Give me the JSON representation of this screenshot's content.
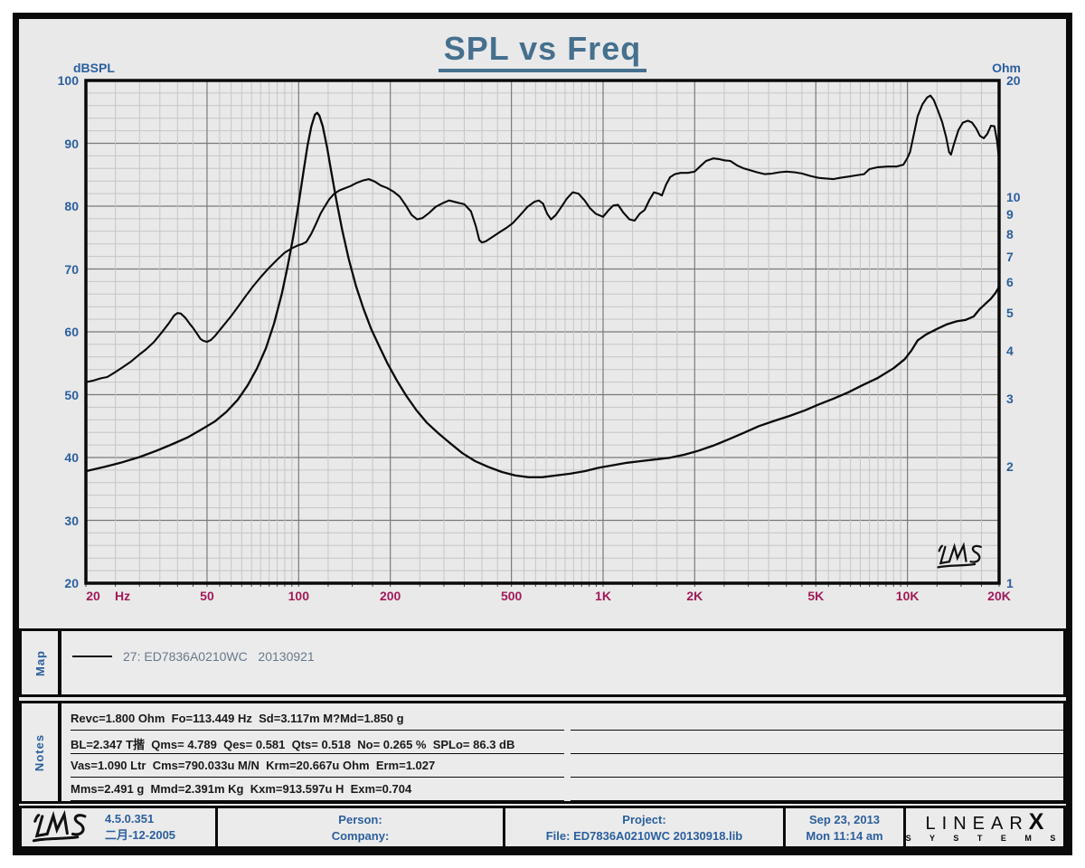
{
  "title": "SPL vs Freq",
  "axes": {
    "left_label": "dBSPL",
    "right_label": "Ohm",
    "x_unit": "Hz",
    "left_ticks": [
      100,
      90,
      80,
      70,
      60,
      50,
      40,
      30,
      20
    ],
    "right_ticks": [
      20,
      10,
      9,
      8,
      7,
      6,
      5,
      4,
      3,
      2,
      1
    ],
    "x_ticks": [
      {
        "f": 20,
        "label": "20"
      },
      {
        "f": 50,
        "label": "50"
      },
      {
        "f": 100,
        "label": "100"
      },
      {
        "f": 200,
        "label": "200"
      },
      {
        "f": 500,
        "label": "500"
      },
      {
        "f": 1000,
        "label": "1K"
      },
      {
        "f": 2000,
        "label": "2K"
      },
      {
        "f": 5000,
        "label": "5K"
      },
      {
        "f": 10000,
        "label": "10K"
      },
      {
        "f": 20000,
        "label": "20K"
      }
    ]
  },
  "chart_data": {
    "type": "line",
    "title": "SPL vs Freq",
    "x_axis": {
      "label": "Hz",
      "scale": "log",
      "min": 20,
      "max": 20000
    },
    "y_left_axis": {
      "label": "dBSPL",
      "scale": "linear",
      "min": 20,
      "max": 100,
      "major_step": 10,
      "minor_step": 2
    },
    "y_right_axis": {
      "label": "Ohm",
      "scale": "log",
      "min": 1,
      "max": 20
    },
    "grid": {
      "on": true,
      "minor_color": "#c6c6c6",
      "major_color": "#7a7a7a"
    },
    "legend_position": "map-panel-below-chart",
    "series": [
      {
        "name": "27: ED7836A0210WC 20130921 (SPL)",
        "axis": "left",
        "color": "#0a0a0a",
        "points": [
          [
            20,
            52.0
          ],
          [
            21,
            52.2
          ],
          [
            22.4,
            52.6
          ],
          [
            23.5,
            52.8
          ],
          [
            25,
            53.6
          ],
          [
            26.5,
            54.4
          ],
          [
            28,
            55.2
          ],
          [
            30,
            56.4
          ],
          [
            31.5,
            57.2
          ],
          [
            33.5,
            58.4
          ],
          [
            35.5,
            59.9
          ],
          [
            37.5,
            61.4
          ],
          [
            39,
            62.6
          ],
          [
            40,
            63.0
          ],
          [
            41,
            62.9
          ],
          [
            42.5,
            62.2
          ],
          [
            44,
            61.2
          ],
          [
            45,
            60.6
          ],
          [
            46.5,
            59.6
          ],
          [
            47.5,
            58.9
          ],
          [
            48.5,
            58.6
          ],
          [
            50,
            58.4
          ],
          [
            51.5,
            58.7
          ],
          [
            53,
            59.3
          ],
          [
            56,
            60.7
          ],
          [
            60,
            62.5
          ],
          [
            63,
            63.9
          ],
          [
            67,
            65.7
          ],
          [
            71,
            67.3
          ],
          [
            75,
            68.7
          ],
          [
            80,
            70.2
          ],
          [
            85,
            71.5
          ],
          [
            90,
            72.6
          ],
          [
            95,
            73.3
          ],
          [
            100,
            73.8
          ],
          [
            103,
            74.0
          ],
          [
            106,
            74.3
          ],
          [
            110,
            75.6
          ],
          [
            114,
            77.2
          ],
          [
            118,
            78.8
          ],
          [
            122,
            80.0
          ],
          [
            126,
            81.1
          ],
          [
            131,
            82.0
          ],
          [
            136,
            82.5
          ],
          [
            141,
            82.8
          ],
          [
            148,
            83.2
          ],
          [
            155,
            83.7
          ],
          [
            163,
            84.1
          ],
          [
            170,
            84.3
          ],
          [
            178,
            83.9
          ],
          [
            186,
            83.3
          ],
          [
            195,
            82.9
          ],
          [
            205,
            82.3
          ],
          [
            215,
            81.5
          ],
          [
            225,
            80.1
          ],
          [
            235,
            78.6
          ],
          [
            245,
            77.9
          ],
          [
            255,
            78.1
          ],
          [
            268,
            78.9
          ],
          [
            282,
            79.9
          ],
          [
            298,
            80.5
          ],
          [
            312,
            80.9
          ],
          [
            330,
            80.6
          ],
          [
            350,
            80.3
          ],
          [
            368,
            79.2
          ],
          [
            382,
            76.8
          ],
          [
            392,
            74.6
          ],
          [
            400,
            74.2
          ],
          [
            412,
            74.4
          ],
          [
            430,
            75.0
          ],
          [
            455,
            75.8
          ],
          [
            480,
            76.5
          ],
          [
            505,
            77.3
          ],
          [
            535,
            78.6
          ],
          [
            565,
            79.9
          ],
          [
            595,
            80.7
          ],
          [
            615,
            80.9
          ],
          [
            635,
            80.4
          ],
          [
            655,
            78.8
          ],
          [
            675,
            77.9
          ],
          [
            700,
            78.6
          ],
          [
            730,
            79.9
          ],
          [
            760,
            81.2
          ],
          [
            795,
            82.2
          ],
          [
            830,
            82.0
          ],
          [
            870,
            80.9
          ],
          [
            905,
            79.7
          ],
          [
            945,
            78.8
          ],
          [
            1000,
            78.3
          ],
          [
            1040,
            79.3
          ],
          [
            1080,
            80.1
          ],
          [
            1120,
            80.2
          ],
          [
            1165,
            79.0
          ],
          [
            1220,
            77.9
          ],
          [
            1270,
            77.7
          ],
          [
            1320,
            78.8
          ],
          [
            1370,
            79.4
          ],
          [
            1420,
            81.0
          ],
          [
            1470,
            82.2
          ],
          [
            1520,
            82.0
          ],
          [
            1560,
            81.7
          ],
          [
            1610,
            83.4
          ],
          [
            1660,
            84.6
          ],
          [
            1720,
            85.1
          ],
          [
            1800,
            85.3
          ],
          [
            1900,
            85.3
          ],
          [
            2000,
            85.5
          ],
          [
            2080,
            86.3
          ],
          [
            2180,
            87.2
          ],
          [
            2300,
            87.6
          ],
          [
            2400,
            87.5
          ],
          [
            2500,
            87.3
          ],
          [
            2620,
            87.2
          ],
          [
            2750,
            86.5
          ],
          [
            2900,
            86.0
          ],
          [
            3050,
            85.7
          ],
          [
            3200,
            85.4
          ],
          [
            3400,
            85.1
          ],
          [
            3600,
            85.2
          ],
          [
            3800,
            85.4
          ],
          [
            4000,
            85.5
          ],
          [
            4250,
            85.4
          ],
          [
            4500,
            85.2
          ],
          [
            4800,
            84.8
          ],
          [
            5100,
            84.5
          ],
          [
            5400,
            84.4
          ],
          [
            5700,
            84.3
          ],
          [
            6000,
            84.5
          ],
          [
            6400,
            84.7
          ],
          [
            6800,
            84.9
          ],
          [
            7200,
            85.1
          ],
          [
            7500,
            85.9
          ],
          [
            8000,
            86.2
          ],
          [
            8600,
            86.3
          ],
          [
            9200,
            86.3
          ],
          [
            9700,
            86.6
          ],
          [
            10000,
            87.7
          ],
          [
            10200,
            88.6
          ],
          [
            10500,
            91.5
          ],
          [
            10800,
            94.3
          ],
          [
            11200,
            96.2
          ],
          [
            11600,
            97.3
          ],
          [
            11900,
            97.6
          ],
          [
            12200,
            96.9
          ],
          [
            12600,
            95.2
          ],
          [
            13000,
            93.4
          ],
          [
            13400,
            91.0
          ],
          [
            13700,
            88.6
          ],
          [
            13900,
            88.2
          ],
          [
            14200,
            89.8
          ],
          [
            14700,
            92.1
          ],
          [
            15200,
            93.3
          ],
          [
            15800,
            93.6
          ],
          [
            16300,
            93.3
          ],
          [
            16800,
            92.4
          ],
          [
            17300,
            91.2
          ],
          [
            17800,
            90.8
          ],
          [
            18300,
            91.5
          ],
          [
            18800,
            92.8
          ],
          [
            19300,
            92.7
          ],
          [
            19700,
            90.3
          ],
          [
            20000,
            87.3
          ]
        ]
      },
      {
        "name": "27: ED7836A0210WC 20130921 (Impedance)",
        "axis": "right",
        "color": "#0a0a0a",
        "points": [
          [
            20,
            1.95
          ],
          [
            23,
            2.0
          ],
          [
            26,
            2.05
          ],
          [
            30,
            2.12
          ],
          [
            34,
            2.2
          ],
          [
            38,
            2.28
          ],
          [
            43,
            2.38
          ],
          [
            48,
            2.5
          ],
          [
            53,
            2.62
          ],
          [
            58,
            2.78
          ],
          [
            63,
            2.98
          ],
          [
            68,
            3.25
          ],
          [
            73,
            3.6
          ],
          [
            78,
            4.05
          ],
          [
            83,
            4.7
          ],
          [
            88,
            5.6
          ],
          [
            92,
            6.6
          ],
          [
            96,
            7.9
          ],
          [
            100,
            9.6
          ],
          [
            104,
            11.8
          ],
          [
            107,
            13.6
          ],
          [
            110,
            15.2
          ],
          [
            113,
            16.3
          ],
          [
            115,
            16.5
          ],
          [
            117,
            16.2
          ],
          [
            120,
            15.2
          ],
          [
            124,
            13.4
          ],
          [
            128,
            11.6
          ],
          [
            133,
            9.8
          ],
          [
            139,
            8.2
          ],
          [
            146,
            6.9
          ],
          [
            154,
            5.9
          ],
          [
            163,
            5.15
          ],
          [
            173,
            4.55
          ],
          [
            184,
            4.1
          ],
          [
            196,
            3.7
          ],
          [
            210,
            3.35
          ],
          [
            226,
            3.05
          ],
          [
            244,
            2.8
          ],
          [
            264,
            2.6
          ],
          [
            288,
            2.44
          ],
          [
            315,
            2.3
          ],
          [
            345,
            2.17
          ],
          [
            380,
            2.07
          ],
          [
            420,
            2.0
          ],
          [
            465,
            1.94
          ],
          [
            515,
            1.9
          ],
          [
            570,
            1.88
          ],
          [
            630,
            1.88
          ],
          [
            700,
            1.9
          ],
          [
            780,
            1.92
          ],
          [
            870,
            1.95
          ],
          [
            970,
            1.99
          ],
          [
            1080,
            2.02
          ],
          [
            1200,
            2.05
          ],
          [
            1330,
            2.07
          ],
          [
            1480,
            2.09
          ],
          [
            1650,
            2.11
          ],
          [
            1850,
            2.15
          ],
          [
            2050,
            2.2
          ],
          [
            2300,
            2.27
          ],
          [
            2600,
            2.36
          ],
          [
            2900,
            2.45
          ],
          [
            3250,
            2.55
          ],
          [
            3650,
            2.63
          ],
          [
            4100,
            2.71
          ],
          [
            4600,
            2.8
          ],
          [
            5100,
            2.9
          ],
          [
            5700,
            3.0
          ],
          [
            6400,
            3.12
          ],
          [
            7100,
            3.25
          ],
          [
            8000,
            3.4
          ],
          [
            9000,
            3.6
          ],
          [
            9800,
            3.8
          ],
          [
            10300,
            4.0
          ],
          [
            10800,
            4.25
          ],
          [
            11500,
            4.4
          ],
          [
            12500,
            4.55
          ],
          [
            13500,
            4.68
          ],
          [
            14500,
            4.76
          ],
          [
            15500,
            4.8
          ],
          [
            16500,
            4.9
          ],
          [
            17200,
            5.1
          ],
          [
            18000,
            5.28
          ],
          [
            18800,
            5.45
          ],
          [
            19500,
            5.65
          ],
          [
            20000,
            5.85
          ]
        ]
      }
    ]
  },
  "plot_logo_text": "LMS",
  "map_panel": {
    "label": "Map",
    "legend_text": "27: ED7836A0210WC   20130921"
  },
  "notes_panel": {
    "label": "Notes",
    "lines": [
      "Revc=1.800 Ohm  Fo=113.449 Hz  Sd=3.117m M?Md=1.850 g",
      "BL=2.347 T揩  Qms= 4.789  Qes= 0.581  Qts= 0.518  No= 0.265 %  SPLo= 86.3 dB",
      "Vas=1.090 Ltr  Cms=790.033u M/N  Krm=20.667u Ohm  Erm=1.027",
      "Mms=2.491 g  Mmd=2.391m Kg  Kxm=913.597u H  Exm=0.704"
    ],
    "right_column_underlines": 4
  },
  "footer": {
    "version": "4.5.0.351",
    "version_date": "二月-12-2005",
    "person_label": "Person:",
    "company_label": "Company:",
    "project_label": "Project:",
    "file_label": "File: ED7836A0210WC 20130918.lib",
    "date_line1": "Sep 23, 2013",
    "date_line2": "Mon 11:14 am",
    "brand_main": "LINEAR",
    "brand_x": "X",
    "brand_sub": "S Y S T E M S"
  },
  "colors": {
    "background": "#e9e9e9",
    "frame": "#0a0a0a",
    "title": "#45708e",
    "y_tick_blue": "#2b5f9e",
    "x_tick_maroon": "#a21a58",
    "legend_gray": "#68798b",
    "curve": "#0a0a0a"
  }
}
